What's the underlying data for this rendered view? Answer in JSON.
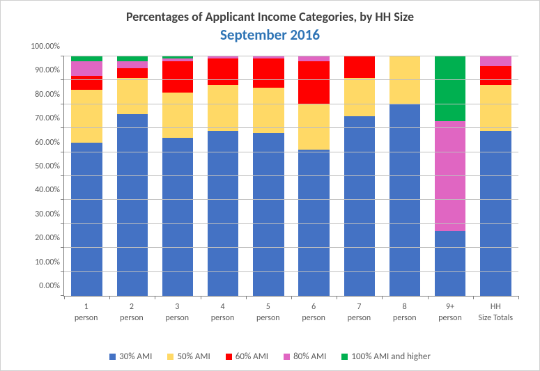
{
  "chart": {
    "type": "stacked-bar-100pct",
    "title": "Percentages of Applicant Income Categories, by HH Size",
    "subtitle": "September 2016",
    "title_color": "#404040",
    "subtitle_color": "#2e74b5",
    "title_fontsize": 18,
    "subtitle_fontsize": 21,
    "background_color": "#ffffff",
    "grid_color": "#bfbfbf",
    "axis_color": "#808080",
    "label_color": "#595959",
    "label_fontsize": 12,
    "ylim": [
      0,
      100
    ],
    "ytick_step": 10,
    "ytick_format": "0.00%",
    "yticks": [
      "0.00%",
      "10.00%",
      "20.00%",
      "30.00%",
      "40.00%",
      "50.00%",
      "60.00%",
      "70.00%",
      "80.00%",
      "90.00%",
      "100.00%"
    ],
    "categories": [
      "1 person",
      "2 person",
      "3 person",
      "4 person",
      "5 person",
      "6 person",
      "7 person",
      "8 person",
      "9+ person",
      "HH Size Totals"
    ],
    "series": [
      {
        "name": "30% AMI",
        "color": "#4472c4"
      },
      {
        "name": "50% AMI",
        "color": "#ffd966"
      },
      {
        "name": "60% AMI",
        "color": "#ff0000"
      },
      {
        "name": "80% AMI",
        "color": "#e066c2"
      },
      {
        "name": "100% AMI and higher",
        "color": "#00b050"
      }
    ],
    "values": [
      [
        64,
        22,
        6,
        6,
        2
      ],
      [
        76,
        15,
        4,
        3,
        2
      ],
      [
        66,
        19,
        13,
        1,
        1
      ],
      [
        69,
        19,
        11,
        1,
        0
      ],
      [
        68,
        19,
        12,
        1,
        0
      ],
      [
        61,
        19,
        18,
        2,
        0
      ],
      [
        75,
        16,
        9,
        0,
        0
      ],
      [
        80,
        20,
        0,
        0,
        0
      ],
      [
        27,
        0,
        0,
        46,
        27
      ],
      [
        69,
        19,
        8,
        4,
        0
      ]
    ],
    "bar_width_pct": 68
  }
}
